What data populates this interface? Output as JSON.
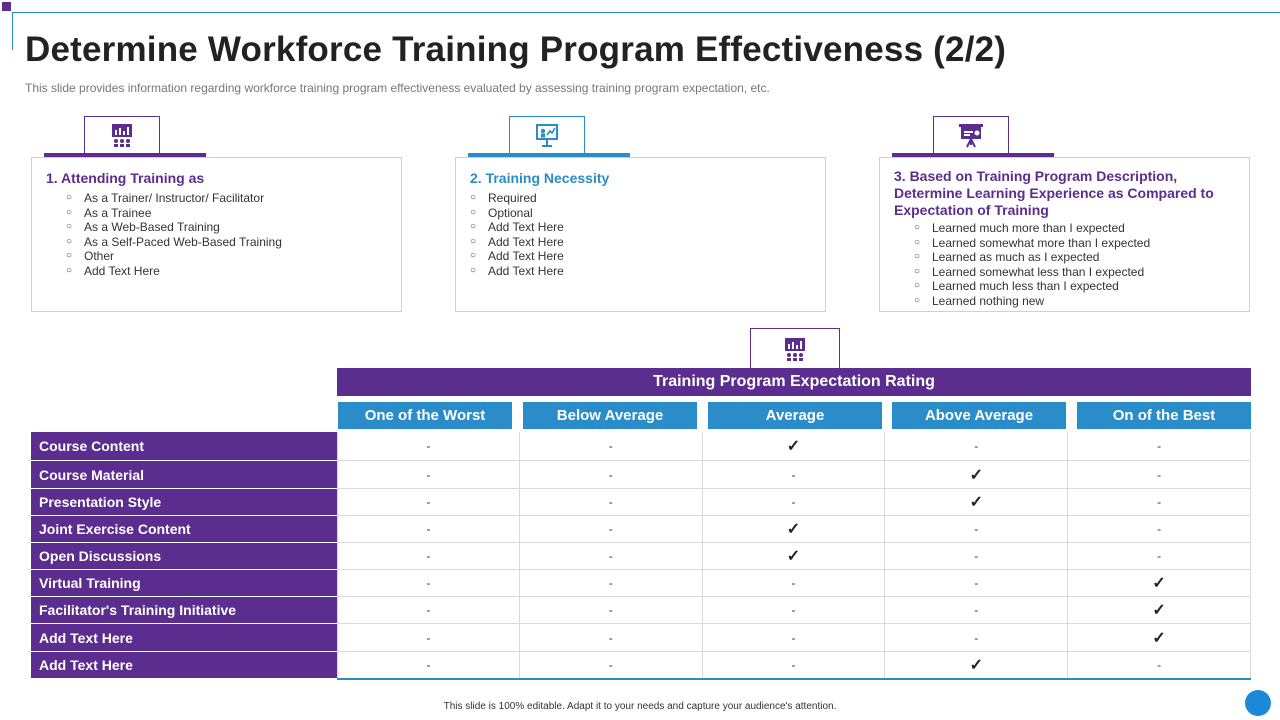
{
  "title": "Determine Workforce Training Program Effectiveness (2/2)",
  "subtitle": "This slide provides information regarding workforce training program effectiveness evaluated by assessing training program expectation, etc.",
  "colors": {
    "purple": "#5b2d8e",
    "blue": "#2a8cc8"
  },
  "cards": [
    {
      "icon": "presentation-chart-icon",
      "title": "1. Attending Training as",
      "items": [
        "As a Trainer/ Instructor/ Facilitator",
        "As a Trainee",
        "As a Web-Based Training",
        "As a Self-Paced Web-Based Training",
        "Other",
        "Add Text Here"
      ]
    },
    {
      "icon": "teacher-board-icon",
      "title": "2. Training Necessity",
      "items": [
        "Required",
        "Optional",
        "Add Text Here",
        "Add Text Here",
        "Add Text Here",
        "Add Text Here"
      ]
    },
    {
      "icon": "easel-icon",
      "title": "3. Based on Training Program Description, Determine Learning Experience as Compared to Expectation of Training",
      "items": [
        "Learned much more than I expected",
        "Learned somewhat more than I expected",
        "Learned as much as I expected",
        "Learned somewhat less than I expected",
        "Learned much less than I expected",
        "Learned nothing new"
      ]
    }
  ],
  "table": {
    "icon": "presentation-chart-icon",
    "header": "Training Program Expectation Rating",
    "columns": [
      "One of the Worst",
      "Below Average",
      "Average",
      "Above Average",
      "On of the Best"
    ],
    "rows": [
      {
        "label": "Course Content",
        "cells": [
          "-",
          "-",
          "✓",
          "-",
          "-"
        ]
      },
      {
        "label": "Course Material",
        "cells": [
          "-",
          "-",
          "-",
          "✓",
          "-"
        ]
      },
      {
        "label": "Presentation Style",
        "cells": [
          "-",
          "-",
          "-",
          "✓",
          "-"
        ]
      },
      {
        "label": "Joint Exercise Content",
        "cells": [
          "-",
          "-",
          "✓",
          "-",
          "-"
        ]
      },
      {
        "label": "Open Discussions",
        "cells": [
          "-",
          "-",
          "✓",
          "-",
          "-"
        ]
      },
      {
        "label": "Virtual Training",
        "cells": [
          "-",
          "-",
          "-",
          "-",
          "✓"
        ]
      },
      {
        "label": "Facilitator's Training Initiative",
        "cells": [
          "-",
          "-",
          "-",
          "-",
          "✓"
        ]
      },
      {
        "label": "Add Text Here",
        "cells": [
          "-",
          "-",
          "-",
          "-",
          "✓"
        ]
      },
      {
        "label": "Add Text Here",
        "cells": [
          "-",
          "-",
          "-",
          "✓",
          "-"
        ]
      }
    ]
  },
  "footer": "This slide is 100% editable. Adapt it to your needs and capture your audience's attention."
}
